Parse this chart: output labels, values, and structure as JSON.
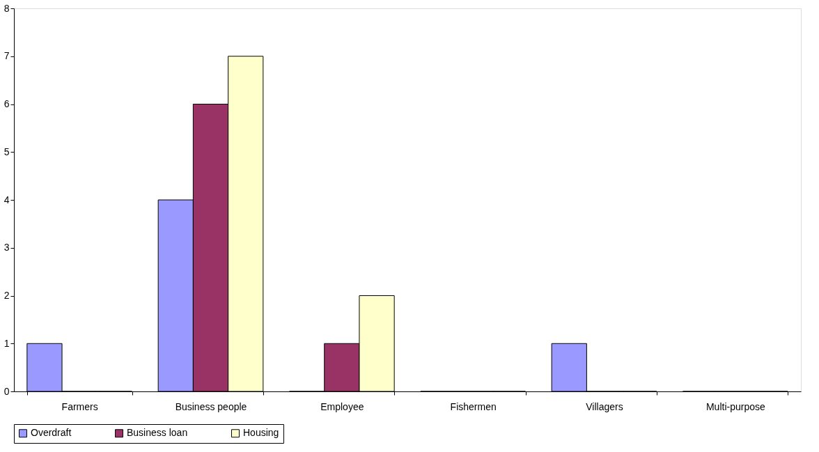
{
  "chart_data": {
    "type": "bar",
    "categories": [
      "Farmers",
      "Business people",
      "Employee",
      "Fishermen",
      "Villagers",
      "Multi-purpose"
    ],
    "series": [
      {
        "name": "Overdraft",
        "color": "#9999ff",
        "values": [
          1,
          4,
          0,
          0,
          1,
          0
        ]
      },
      {
        "name": "Business loan",
        "color": "#993366",
        "values": [
          0,
          6,
          1,
          0,
          0,
          0
        ]
      },
      {
        "name": "Housing",
        "color": "#ffffcc",
        "values": [
          0,
          7,
          2,
          0,
          0,
          0
        ]
      }
    ],
    "ylim": [
      0,
      8
    ],
    "yticks": [
      0,
      1,
      2,
      3,
      4,
      5,
      6,
      7,
      8
    ],
    "grid": false,
    "legend": "bottom"
  }
}
